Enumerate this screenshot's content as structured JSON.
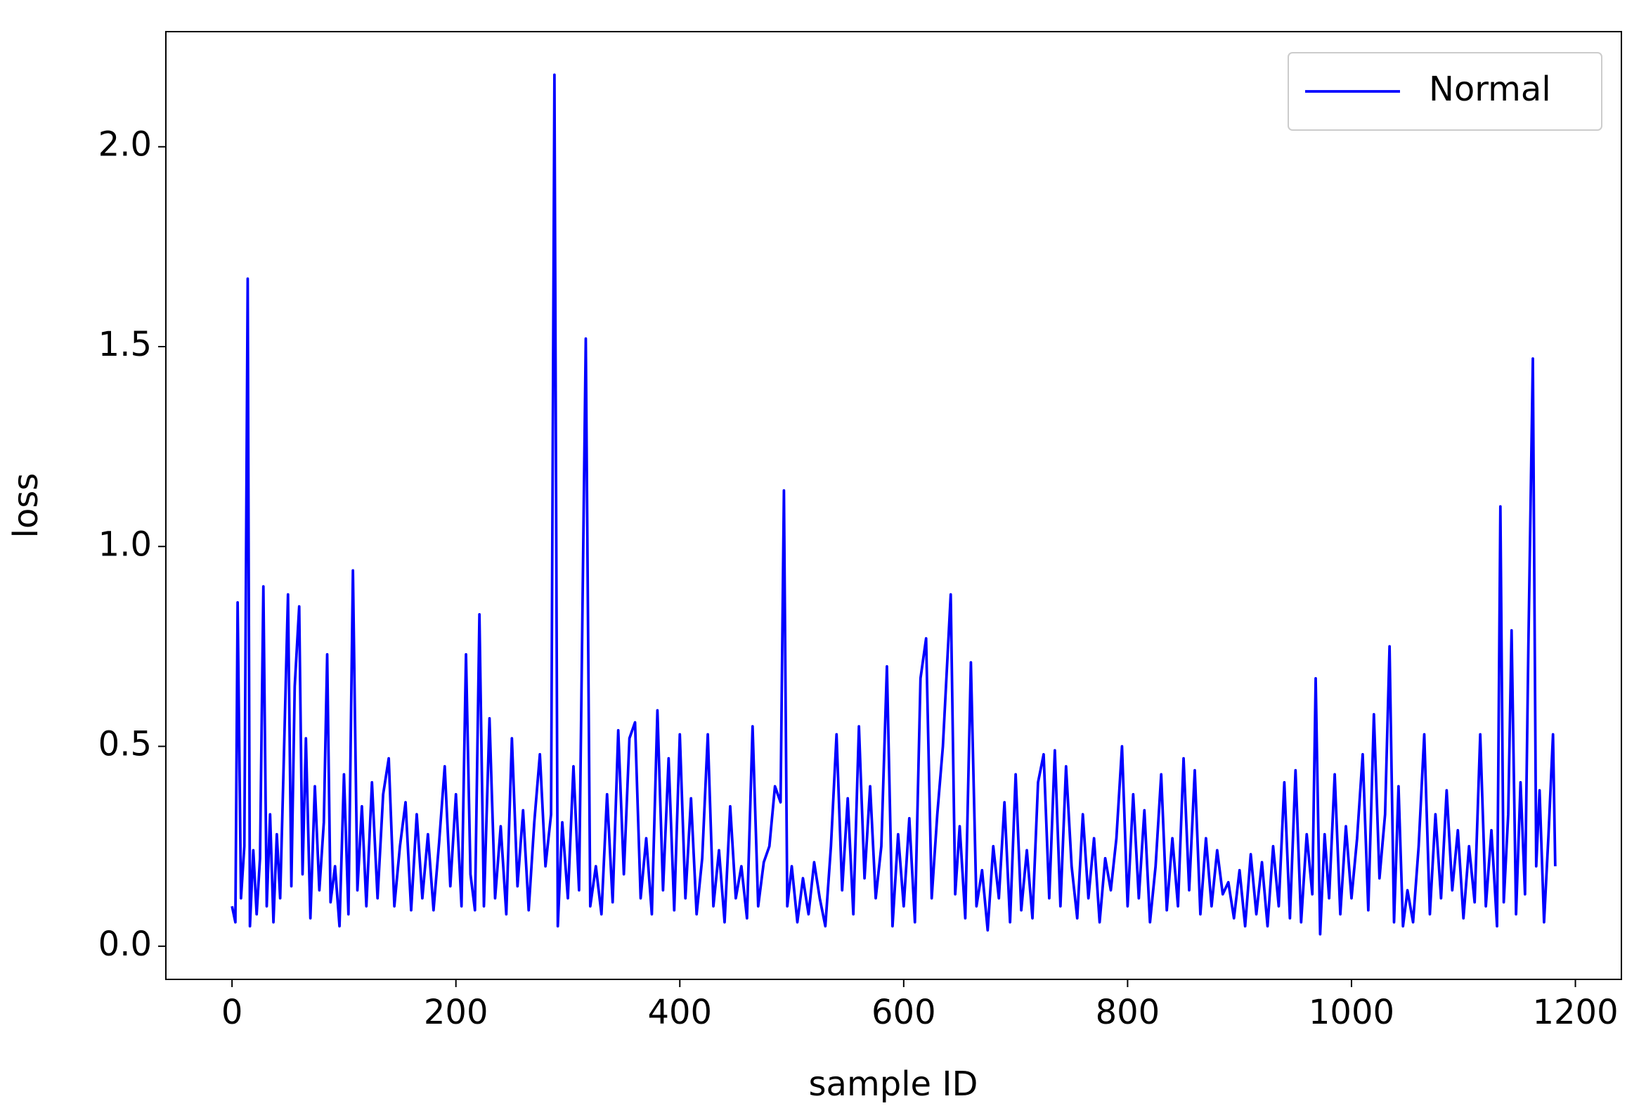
{
  "chart_data": {
    "type": "line",
    "xlabel": "sample ID",
    "ylabel": "loss",
    "x": [
      0,
      3,
      5,
      8,
      11,
      14,
      16,
      19,
      22,
      25,
      28,
      31,
      34,
      37,
      40,
      43,
      46,
      50,
      53,
      56,
      60,
      63,
      66,
      70,
      74,
      78,
      82,
      85,
      88,
      92,
      96,
      100,
      104,
      108,
      112,
      116,
      120,
      125,
      130,
      135,
      140,
      145,
      150,
      155,
      160,
      165,
      170,
      175,
      180,
      185,
      190,
      195,
      200,
      205,
      209,
      213,
      217,
      221,
      225,
      230,
      235,
      240,
      245,
      250,
      255,
      260,
      265,
      270,
      275,
      280,
      285,
      288,
      291,
      295,
      300,
      305,
      310,
      316,
      320,
      325,
      330,
      335,
      340,
      345,
      350,
      355,
      360,
      365,
      370,
      375,
      380,
      385,
      390,
      395,
      400,
      405,
      410,
      415,
      420,
      425,
      430,
      435,
      440,
      445,
      450,
      455,
      460,
      465,
      470,
      475,
      480,
      485,
      490,
      493,
      496,
      500,
      505,
      510,
      515,
      520,
      525,
      530,
      535,
      540,
      545,
      550,
      555,
      560,
      565,
      570,
      575,
      580,
      585,
      590,
      595,
      600,
      605,
      610,
      615,
      620,
      625,
      630,
      635,
      642,
      646,
      650,
      655,
      660,
      665,
      670,
      675,
      680,
      685,
      690,
      695,
      700,
      705,
      710,
      715,
      720,
      725,
      730,
      735,
      740,
      745,
      750,
      755,
      760,
      765,
      770,
      775,
      780,
      785,
      790,
      795,
      800,
      805,
      810,
      815,
      820,
      825,
      830,
      835,
      840,
      845,
      850,
      855,
      860,
      865,
      870,
      875,
      880,
      885,
      890,
      895,
      900,
      905,
      910,
      915,
      920,
      925,
      930,
      935,
      940,
      945,
      950,
      955,
      960,
      965,
      968,
      972,
      976,
      980,
      985,
      990,
      995,
      1000,
      1005,
      1010,
      1015,
      1020,
      1025,
      1030,
      1034,
      1038,
      1042,
      1046,
      1050,
      1055,
      1060,
      1065,
      1070,
      1075,
      1080,
      1085,
      1090,
      1095,
      1100,
      1105,
      1110,
      1115,
      1120,
      1125,
      1130,
      1133,
      1136,
      1140,
      1143,
      1147,
      1151,
      1155,
      1158,
      1162,
      1165,
      1168,
      1172,
      1176,
      1180,
      1182
    ],
    "series": [
      {
        "name": "Normal",
        "color": "#0000ff",
        "values": [
          0.1,
          0.06,
          0.86,
          0.12,
          0.25,
          1.67,
          0.05,
          0.24,
          0.08,
          0.22,
          0.9,
          0.1,
          0.33,
          0.06,
          0.28,
          0.12,
          0.44,
          0.88,
          0.15,
          0.65,
          0.85,
          0.18,
          0.52,
          0.07,
          0.4,
          0.14,
          0.31,
          0.73,
          0.11,
          0.2,
          0.05,
          0.43,
          0.08,
          0.94,
          0.14,
          0.35,
          0.1,
          0.41,
          0.12,
          0.38,
          0.47,
          0.1,
          0.25,
          0.36,
          0.09,
          0.33,
          0.12,
          0.28,
          0.09,
          0.26,
          0.45,
          0.15,
          0.38,
          0.1,
          0.73,
          0.18,
          0.09,
          0.83,
          0.1,
          0.57,
          0.12,
          0.3,
          0.08,
          0.52,
          0.15,
          0.34,
          0.09,
          0.31,
          0.48,
          0.2,
          0.33,
          2.18,
          0.05,
          0.31,
          0.12,
          0.45,
          0.14,
          1.52,
          0.1,
          0.2,
          0.08,
          0.38,
          0.11,
          0.54,
          0.18,
          0.52,
          0.56,
          0.12,
          0.27,
          0.08,
          0.59,
          0.14,
          0.47,
          0.09,
          0.53,
          0.12,
          0.37,
          0.08,
          0.22,
          0.53,
          0.1,
          0.24,
          0.06,
          0.35,
          0.12,
          0.2,
          0.07,
          0.55,
          0.1,
          0.21,
          0.25,
          0.4,
          0.36,
          1.14,
          0.1,
          0.2,
          0.06,
          0.17,
          0.08,
          0.21,
          0.12,
          0.05,
          0.25,
          0.53,
          0.14,
          0.37,
          0.08,
          0.55,
          0.17,
          0.4,
          0.12,
          0.25,
          0.7,
          0.05,
          0.28,
          0.1,
          0.32,
          0.06,
          0.67,
          0.77,
          0.12,
          0.33,
          0.5,
          0.88,
          0.13,
          0.3,
          0.07,
          0.71,
          0.1,
          0.19,
          0.04,
          0.25,
          0.12,
          0.36,
          0.06,
          0.43,
          0.09,
          0.24,
          0.07,
          0.41,
          0.48,
          0.12,
          0.49,
          0.1,
          0.45,
          0.2,
          0.07,
          0.33,
          0.12,
          0.27,
          0.06,
          0.22,
          0.14,
          0.27,
          0.5,
          0.1,
          0.38,
          0.12,
          0.34,
          0.06,
          0.2,
          0.43,
          0.09,
          0.27,
          0.1,
          0.47,
          0.14,
          0.44,
          0.08,
          0.27,
          0.1,
          0.24,
          0.13,
          0.16,
          0.07,
          0.19,
          0.05,
          0.23,
          0.08,
          0.21,
          0.05,
          0.25,
          0.1,
          0.41,
          0.07,
          0.44,
          0.06,
          0.28,
          0.13,
          0.67,
          0.03,
          0.28,
          0.12,
          0.43,
          0.08,
          0.3,
          0.12,
          0.27,
          0.48,
          0.09,
          0.58,
          0.17,
          0.33,
          0.75,
          0.06,
          0.4,
          0.05,
          0.14,
          0.06,
          0.25,
          0.53,
          0.08,
          0.33,
          0.12,
          0.39,
          0.14,
          0.29,
          0.07,
          0.25,
          0.11,
          0.53,
          0.1,
          0.29,
          0.05,
          1.1,
          0.11,
          0.33,
          0.79,
          0.08,
          0.41,
          0.13,
          0.75,
          1.47,
          0.2,
          0.39,
          0.06,
          0.28,
          0.53,
          0.2
        ]
      }
    ],
    "xlim": [
      -59.1,
      1241.1
    ],
    "xticks": [
      0,
      200,
      400,
      600,
      800,
      1000,
      1200
    ],
    "ylim": [
      -0.083,
      2.288
    ],
    "yticks": [
      {
        "value": 0,
        "label": "0.0"
      },
      0.5,
      {
        "value": 1,
        "label": "1.0"
      },
      1.5,
      {
        "value": 2,
        "label": "2.0"
      }
    ],
    "legend": "upper right",
    "grid": false
  }
}
